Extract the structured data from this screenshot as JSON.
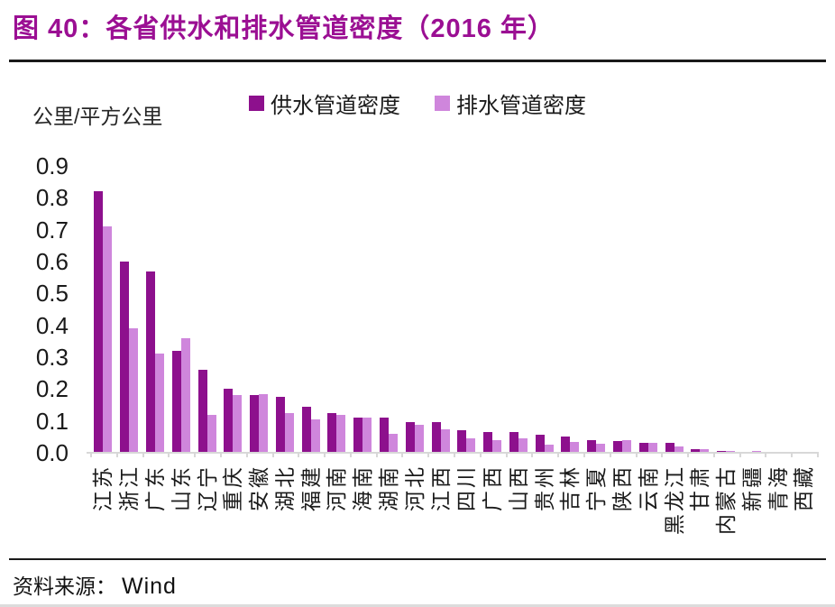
{
  "figure": {
    "title": "图 40：各省供水和排水管道密度（2016 年）",
    "source_label": "资料来源：",
    "source_value": "Wind"
  },
  "chart_data": {
    "type": "bar",
    "title": "各省供水和排水管道密度（2016 年）",
    "unit_label": "公里/平方公里",
    "ylabel": "公里/平方公里",
    "xlabel": "",
    "ylim": [
      0,
      0.9
    ],
    "ytick_step": 0.1,
    "ytick_labels": [
      "0.9",
      "0.8",
      "0.7",
      "0.6",
      "0.5",
      "0.4",
      "0.3",
      "0.2",
      "0.1",
      "0.0"
    ],
    "grid": false,
    "legend_position": "top",
    "categories": [
      "江苏",
      "浙江",
      "广东",
      "山东",
      "辽宁",
      "重庆",
      "安徽",
      "湖北",
      "福建",
      "河南",
      "海南",
      "湖南",
      "河北",
      "江西",
      "四川",
      "广西",
      "山西",
      "贵州",
      "吉林",
      "宁夏",
      "陕西",
      "云南",
      "黑龙江",
      "甘肃",
      "内蒙古",
      "新疆",
      "青海",
      "西藏"
    ],
    "series": [
      {
        "name": "供水管道密度",
        "color": "#8D108D",
        "values": [
          0.82,
          0.6,
          0.57,
          0.32,
          0.26,
          0.2,
          0.18,
          0.175,
          0.145,
          0.125,
          0.11,
          0.11,
          0.095,
          0.095,
          0.071,
          0.066,
          0.065,
          0.057,
          0.052,
          0.04,
          0.036,
          0.031,
          0.031,
          0.01,
          0.005,
          0.004,
          0.002,
          0.001
        ]
      },
      {
        "name": "排水管道密度",
        "color": "#CF86DC",
        "values": [
          0.71,
          0.39,
          0.31,
          0.36,
          0.12,
          0.18,
          0.185,
          0.125,
          0.105,
          0.12,
          0.11,
          0.06,
          0.088,
          0.075,
          0.045,
          0.04,
          0.045,
          0.025,
          0.035,
          0.028,
          0.04,
          0.031,
          0.019,
          0.012,
          0.006,
          0.005,
          0.002,
          0.001
        ]
      }
    ]
  },
  "colors": {
    "title": "#9B0F93",
    "axis_line": "#d8d8d8",
    "text": "#1a1a1a"
  }
}
